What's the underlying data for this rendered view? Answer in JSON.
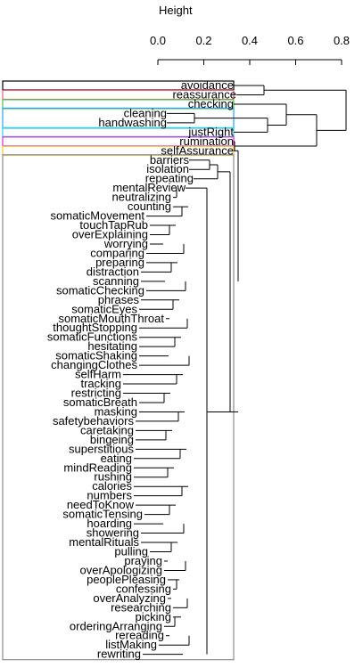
{
  "chart_data": {
    "type": "dendrogram",
    "orientation": "horizontal",
    "axis": {
      "title": "Height",
      "ticks": [
        0.0,
        0.2,
        0.4,
        0.6,
        0.8
      ],
      "tick_labels": [
        "0.0",
        "0.2",
        "0.4",
        "0.6",
        "0.8"
      ]
    },
    "leaves": [
      "avoidance",
      "reassurance",
      "checking",
      "cleaning",
      "handwashing",
      "justRight",
      "rumination",
      "selfAssurance",
      "barriers",
      "isolation",
      "repeating",
      "mentalReview",
      "neutralizing",
      "counting",
      "somaticMovement",
      "touchTapRub",
      "overExplaining",
      "worrying",
      "comparing",
      "preparing",
      "distraction",
      "scanning",
      "somaticChecking",
      "phrases",
      "somaticEyes",
      "somaticMouthThroat",
      "thoughtStopping",
      "somaticFunctions",
      "hesitating",
      "somaticShaking",
      "changingClothes",
      "selfHarm",
      "tracking",
      "restricting",
      "somaticBreath",
      "masking",
      "safetybehaviors",
      "caretaking",
      "bingeing",
      "superstitious",
      "eating",
      "mindReading",
      "rushing",
      "calories",
      "numbers",
      "needToKnow",
      "somaticTensing",
      "hoarding",
      "showering",
      "mentalRituals",
      "pulling",
      "praying",
      "overApologizing",
      "peoplePleasing",
      "confessing",
      "overAnalyzing",
      "researching",
      "picking",
      "orderingArranging",
      "rereading",
      "listMaking",
      "rewriting"
    ],
    "merges": [
      {
        "a": "avoidance",
        "b": "reassurance",
        "height": 0.75
      },
      {
        "a": "cleaning",
        "b": "handwashing",
        "height": 0.12
      },
      {
        "a": "listMaking",
        "b": "rewriting",
        "height": 0.07
      },
      {
        "a": "rereading",
        "b": "listMaking+rewriting",
        "height": 0.09
      },
      {
        "a": "orderingArranging",
        "b": "rereading+listMaking+rewriting",
        "height": 0.12
      },
      {
        "a": "barriers",
        "b": "isolation",
        "height": 0.25
      },
      {
        "a": "somaticMouthThroat",
        "b": "thoughtStopping",
        "height": 0.03
      },
      {
        "a": "somaticChecking",
        "b": "phrases",
        "height": 0.04
      },
      {
        "a": "somaticShaking",
        "b": "changingClothes",
        "height": 0.05
      },
      {
        "a": "overApologizing",
        "b": "peoplePleasing",
        "height": 0.08
      }
    ],
    "highlight_boxes": [
      {
        "cluster": [
          "avoidance"
        ],
        "color": "#000000"
      },
      {
        "cluster": [
          "reassurance"
        ],
        "color": "#e8607a"
      },
      {
        "cluster": [
          "checking"
        ],
        "color": "#4fc24f"
      },
      {
        "cluster": [
          "cleaning",
          "handwashing"
        ],
        "color": "#2aa3ee"
      },
      {
        "cluster": [
          "justRight"
        ],
        "color": "#2ad6e6"
      },
      {
        "cluster": [
          "rumination"
        ],
        "color": "#d629d6"
      },
      {
        "cluster": [
          "selfAssurance"
        ],
        "color": "#f0c63a"
      },
      {
        "cluster": [
          "barriers … rewriting"
        ],
        "color": "#8c8c8c"
      }
    ]
  }
}
